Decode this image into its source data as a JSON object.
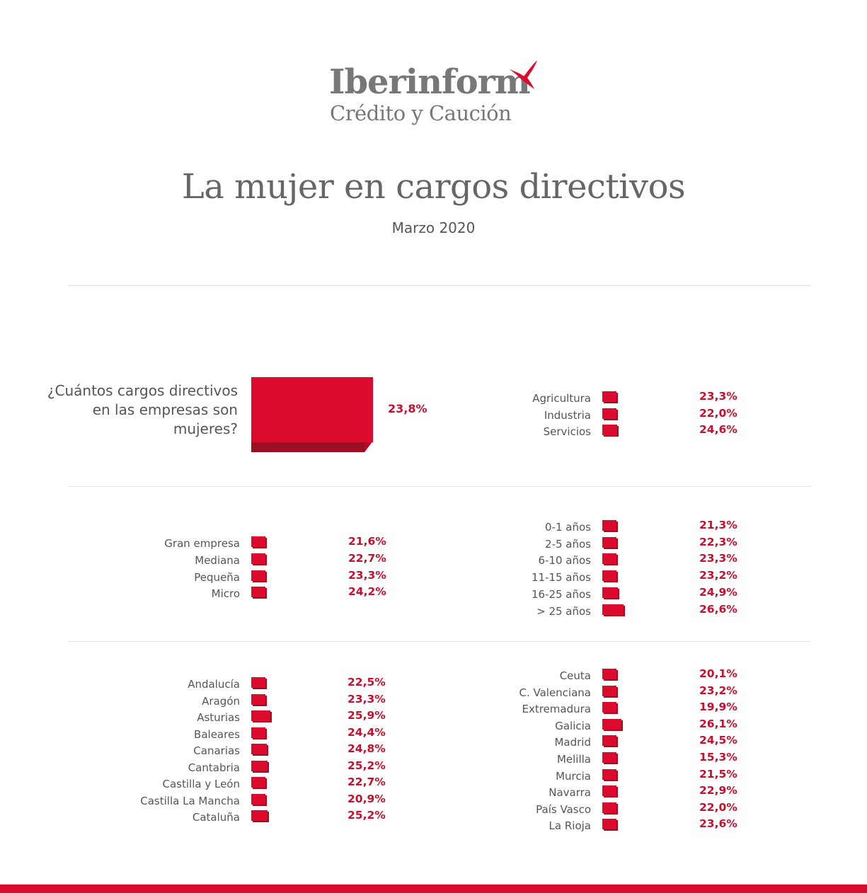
{
  "brand": {
    "name": "Iberinform",
    "tagline": "Crédito y Caución",
    "accent": "#dc0a2c"
  },
  "header": {
    "title": "La mujer en cargos directivos",
    "subtitle": "Marzo 2020"
  },
  "question": {
    "text": "¿Cuántos cargos directivos en las empresas son mujeres?",
    "value_label": "23,8%"
  },
  "chart_data": [
    {
      "type": "bar",
      "orientation": "horizontal",
      "unit": "%",
      "categories": [
        "¿Cuántos cargos directivos en las empresas son mujeres?"
      ],
      "values": [
        23.8
      ],
      "labels": [
        "23,8%"
      ]
    },
    {
      "type": "bar",
      "orientation": "horizontal",
      "unit": "%",
      "categories": [
        "Agricultura",
        "Industria",
        "Servicios"
      ],
      "values": [
        23.3,
        22.0,
        24.6
      ],
      "labels": [
        "23,3%",
        "22,0%",
        "24,6%"
      ]
    },
    {
      "type": "bar",
      "orientation": "horizontal",
      "unit": "%",
      "categories": [
        "Gran empresa",
        "Mediana",
        "Pequeña",
        "Micro"
      ],
      "values": [
        21.6,
        22.7,
        23.3,
        24.2
      ],
      "labels": [
        "21,6%",
        "22,7%",
        "23,3%",
        "24,2%"
      ]
    },
    {
      "type": "bar",
      "orientation": "horizontal",
      "unit": "%",
      "categories": [
        "0-1 años",
        "2-5 años",
        "6-10 años",
        "11-15 años",
        "16-25 años",
        "> 25 años"
      ],
      "values": [
        21.3,
        22.3,
        23.3,
        23.2,
        24.9,
        26.6
      ],
      "labels": [
        "21,3%",
        "22,3%",
        "23,3%",
        "23,2%",
        "24,9%",
        "26,6%"
      ]
    },
    {
      "type": "bar",
      "orientation": "horizontal",
      "unit": "%",
      "categories": [
        "Andalucía",
        "Aragón",
        "Asturias",
        "Baleares",
        "Canarias",
        "Cantabria",
        "Castilla y León",
        "Castilla La Mancha",
        "Cataluña"
      ],
      "values": [
        22.5,
        23.3,
        25.9,
        24.4,
        24.8,
        25.2,
        22.7,
        20.9,
        25.2
      ],
      "labels": [
        "22,5%",
        "23,3%",
        "25,9%",
        "24,4%",
        "24,8%",
        "25,2%",
        "22,7%",
        "20,9%",
        "25,2%"
      ]
    },
    {
      "type": "bar",
      "orientation": "horizontal",
      "unit": "%",
      "categories": [
        "Ceuta",
        "C. Valenciana",
        "Extremadura",
        "Galicia",
        "Madrid",
        "Melilla",
        "Murcia",
        "Navarra",
        "País Vasco",
        "La Rioja"
      ],
      "values": [
        20.1,
        23.2,
        19.9,
        26.1,
        24.5,
        15.3,
        21.5,
        22.9,
        22.0,
        23.6
      ],
      "labels": [
        "20,1%",
        "23,2%",
        "19,9%",
        "26,1%",
        "24,5%",
        "15,3%",
        "21,5%",
        "22,9%",
        "22,0%",
        "23,6%"
      ]
    }
  ]
}
